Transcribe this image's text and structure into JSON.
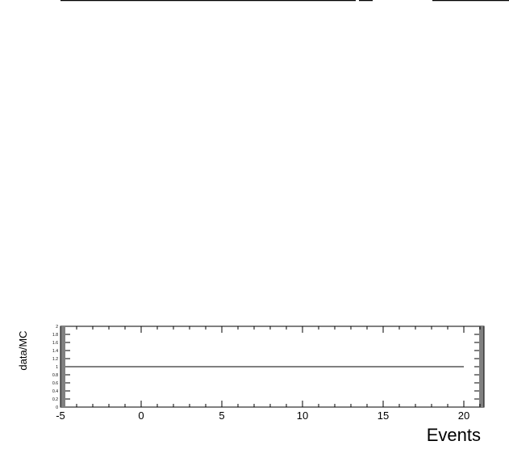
{
  "chart_data": {
    "type": "line",
    "title": "",
    "xlabel": "Events",
    "ylabel": "data/MC",
    "xlim": [
      -5,
      21.25
    ],
    "ylim": [
      0,
      2
    ],
    "x_major_ticks": [
      -5,
      0,
      5,
      10,
      15,
      20
    ],
    "x_tick_labels": [
      "-5",
      "0",
      "5",
      "10",
      "15",
      "20"
    ],
    "y_major_ticks": [
      0,
      0.2,
      0.4,
      0.6,
      0.8,
      1,
      1.2,
      1.4,
      1.6,
      1.8,
      2
    ],
    "y_tick_labels": [
      "0",
      "0.2",
      "0.4",
      "0.6",
      "0.8",
      "1",
      "1.2",
      "1.4",
      "1.6",
      "1.8",
      "2"
    ],
    "grid": false,
    "series": [
      {
        "x": [
          -5,
          20
        ],
        "y": [
          1,
          1
        ]
      }
    ]
  }
}
